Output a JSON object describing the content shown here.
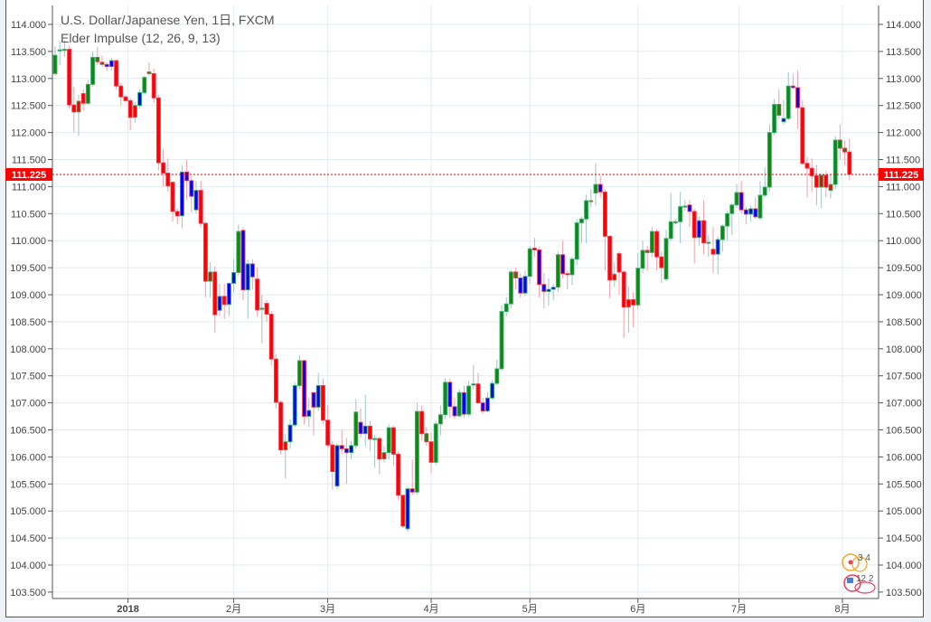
{
  "chart_data": {
    "type": "candlestick",
    "title": "U.S. Dollar/Japanese Yen, 1日, FXCM",
    "indicator": "Elder Impulse (12, 26, 9, 13)",
    "ylim": [
      103.3,
      114.3
    ],
    "y_ticks": [
      "103.500",
      "104.000",
      "104.500",
      "105.000",
      "105.500",
      "106.000",
      "106.500",
      "107.000",
      "107.500",
      "108.000",
      "108.500",
      "109.000",
      "109.500",
      "110.000",
      "110.500",
      "111.000",
      "111.500",
      "112.000",
      "112.500",
      "113.000",
      "113.500",
      "114.000"
    ],
    "x_ticks": [
      {
        "label": "2018",
        "index": 15.5,
        "bold": true
      },
      {
        "label": "2月",
        "index": 38
      },
      {
        "label": "3月",
        "index": 58
      },
      {
        "label": "4月",
        "index": 80
      },
      {
        "label": "5月",
        "index": 101
      },
      {
        "label": "6月",
        "index": 124
      },
      {
        "label": "7月",
        "index": 145.5
      },
      {
        "label": "8月",
        "index": 167.5
      }
    ],
    "current_price": 111.225,
    "current_price_label": "111.225",
    "grid": true,
    "colors": {
      "g": "#0a8a14",
      "r": "#ff0000",
      "b": "#0000ff",
      "up_border": "#3fae6e",
      "down_border": "#f03a4f",
      "up_wick": "#9cc6c8",
      "down_wick": "#f2a0aa",
      "price_line": "#e00000"
    },
    "candle_fields": [
      "open",
      "high",
      "low",
      "close",
      "impulse"
    ],
    "candles": [
      [
        113.09,
        113.59,
        113.05,
        113.43,
        "g"
      ],
      [
        113.53,
        113.69,
        113.25,
        113.53,
        "g"
      ],
      [
        113.54,
        113.7,
        113.4,
        113.54,
        "g"
      ],
      [
        113.54,
        113.6,
        112.45,
        112.51,
        "r"
      ],
      [
        112.51,
        112.85,
        112.0,
        112.38,
        "r"
      ],
      [
        112.38,
        112.7,
        111.94,
        112.58,
        "r"
      ],
      [
        112.72,
        112.8,
        112.4,
        112.54,
        "r"
      ],
      [
        112.54,
        112.97,
        112.52,
        112.89,
        "g"
      ],
      [
        112.89,
        113.5,
        112.85,
        113.39,
        "g"
      ],
      [
        113.39,
        113.58,
        113.25,
        113.31,
        "g"
      ],
      [
        113.3,
        113.42,
        113.22,
        113.26,
        "g"
      ],
      [
        113.26,
        113.3,
        113.15,
        113.22,
        "b"
      ],
      [
        113.22,
        113.38,
        113.15,
        113.33,
        "b"
      ],
      [
        113.33,
        113.35,
        112.8,
        112.86,
        "r"
      ],
      [
        112.86,
        112.92,
        112.5,
        112.66,
        "r"
      ],
      [
        112.66,
        112.7,
        112.55,
        112.59,
        "r"
      ],
      [
        112.59,
        112.64,
        112.05,
        112.28,
        "r"
      ],
      [
        112.28,
        112.56,
        112.18,
        112.5,
        "r"
      ],
      [
        112.5,
        112.8,
        112.45,
        112.74,
        "b"
      ],
      [
        112.74,
        113.05,
        112.7,
        113.02,
        "g"
      ],
      [
        113.12,
        113.3,
        113.05,
        113.09,
        "g"
      ],
      [
        113.09,
        113.18,
        112.55,
        112.64,
        "r"
      ],
      [
        112.64,
        112.7,
        111.3,
        111.44,
        "r"
      ],
      [
        111.44,
        111.7,
        111.0,
        111.25,
        "r"
      ],
      [
        111.25,
        111.52,
        110.9,
        111.01,
        "r"
      ],
      [
        111.08,
        111.1,
        110.35,
        110.54,
        "r"
      ],
      [
        110.54,
        110.6,
        110.3,
        110.46,
        "r"
      ],
      [
        110.46,
        111.4,
        110.23,
        111.27,
        "b"
      ],
      [
        111.27,
        111.5,
        110.75,
        111.11,
        "b"
      ],
      [
        111.11,
        111.2,
        110.52,
        110.82,
        "b"
      ],
      [
        110.57,
        111.1,
        110.5,
        110.93,
        "b"
      ],
      [
        110.93,
        111.1,
        110.25,
        110.32,
        "r"
      ],
      [
        110.32,
        110.35,
        108.95,
        109.25,
        "r"
      ],
      [
        109.25,
        109.6,
        108.95,
        109.42,
        "r"
      ],
      [
        109.42,
        109.52,
        108.3,
        108.63,
        "r"
      ],
      [
        108.71,
        109.2,
        108.6,
        108.97,
        "b"
      ],
      [
        108.97,
        109.2,
        108.55,
        108.82,
        "r"
      ],
      [
        108.82,
        109.23,
        108.6,
        109.21,
        "b"
      ],
      [
        109.21,
        109.65,
        109.05,
        109.41,
        "b"
      ],
      [
        109.41,
        110.29,
        109.35,
        110.17,
        "g"
      ],
      [
        110.19,
        110.25,
        108.9,
        109.09,
        "b"
      ],
      [
        109.09,
        109.65,
        108.55,
        109.57,
        "b"
      ],
      [
        109.57,
        109.65,
        109.1,
        109.33,
        "b"
      ],
      [
        109.29,
        109.5,
        108.6,
        108.72,
        "r"
      ],
      [
        108.75,
        109.0,
        108.1,
        108.75,
        "g"
      ],
      [
        108.84,
        108.9,
        108.5,
        108.64,
        "r"
      ],
      [
        108.64,
        108.7,
        107.7,
        107.81,
        "r"
      ],
      [
        107.81,
        107.9,
        106.9,
        107.01,
        "r"
      ],
      [
        107.01,
        107.05,
        106.05,
        106.13,
        "r"
      ],
      [
        106.13,
        106.42,
        105.6,
        106.28,
        "r"
      ],
      [
        106.28,
        106.7,
        106.15,
        106.59,
        "b"
      ],
      [
        106.59,
        107.38,
        106.55,
        107.32,
        "b"
      ],
      [
        107.32,
        107.88,
        107.25,
        107.78,
        "g"
      ],
      [
        107.78,
        107.8,
        106.6,
        106.75,
        "b"
      ],
      [
        106.75,
        107.1,
        106.55,
        106.86,
        "b"
      ],
      [
        107.19,
        107.2,
        106.4,
        106.92,
        "b"
      ],
      [
        106.92,
        107.55,
        106.85,
        107.32,
        "b"
      ],
      [
        107.32,
        107.45,
        106.6,
        106.68,
        "r"
      ],
      [
        106.68,
        106.95,
        106.18,
        106.22,
        "r"
      ],
      [
        106.22,
        106.3,
        105.4,
        105.73,
        "r"
      ],
      [
        105.46,
        106.25,
        105.4,
        106.21,
        "b"
      ],
      [
        106.21,
        106.5,
        106.05,
        106.15,
        "b"
      ],
      [
        106.15,
        106.35,
        105.5,
        106.08,
        "b"
      ],
      [
        106.08,
        106.3,
        105.95,
        106.21,
        "b"
      ],
      [
        106.21,
        107.07,
        106.15,
        106.83,
        "g"
      ],
      [
        106.64,
        106.9,
        106.35,
        106.43,
        "b"
      ],
      [
        106.43,
        107.15,
        106.2,
        106.57,
        "b"
      ],
      [
        106.57,
        106.66,
        106.1,
        106.33,
        "r"
      ],
      [
        106.34,
        106.4,
        105.8,
        106.34,
        "g"
      ],
      [
        106.34,
        106.38,
        105.68,
        105.96,
        "r"
      ],
      [
        105.96,
        106.2,
        105.9,
        106.08,
        "r"
      ],
      [
        106.08,
        106.6,
        105.95,
        106.54,
        "g"
      ],
      [
        106.54,
        106.58,
        105.85,
        106.05,
        "r"
      ],
      [
        106.05,
        106.1,
        105.2,
        105.29,
        "r"
      ],
      [
        105.29,
        105.3,
        104.68,
        104.72,
        "r"
      ],
      [
        104.67,
        105.45,
        104.62,
        105.41,
        "b"
      ],
      [
        105.41,
        105.95,
        105.3,
        105.35,
        "b"
      ],
      [
        105.35,
        107.0,
        105.3,
        106.84,
        "g"
      ],
      [
        106.84,
        106.95,
        106.3,
        106.43,
        "r"
      ],
      [
        106.43,
        106.55,
        106.2,
        106.28,
        "g"
      ],
      [
        106.28,
        106.45,
        105.7,
        105.9,
        "r"
      ],
      [
        105.9,
        106.66,
        105.85,
        106.61,
        "g"
      ],
      [
        106.61,
        106.95,
        106.4,
        106.78,
        "g"
      ],
      [
        106.78,
        107.45,
        106.7,
        107.38,
        "g"
      ],
      [
        107.38,
        107.45,
        106.72,
        106.93,
        "b"
      ],
      [
        106.93,
        107.1,
        106.7,
        106.76,
        "b"
      ],
      [
        106.76,
        107.25,
        106.72,
        107.19,
        "g"
      ],
      [
        107.19,
        107.32,
        106.72,
        106.79,
        "b"
      ],
      [
        106.79,
        107.4,
        106.75,
        107.31,
        "g"
      ],
      [
        107.33,
        107.7,
        107.25,
        107.35,
        "b"
      ],
      [
        107.35,
        107.55,
        106.98,
        107.0,
        "r"
      ],
      [
        107.0,
        107.1,
        106.8,
        106.85,
        "b"
      ],
      [
        106.85,
        107.2,
        106.82,
        107.09,
        "b"
      ],
      [
        107.09,
        107.42,
        107.05,
        107.36,
        "b"
      ],
      [
        107.36,
        107.8,
        107.33,
        107.63,
        "g"
      ],
      [
        107.63,
        108.8,
        107.6,
        108.69,
        "g"
      ],
      [
        108.69,
        108.95,
        108.6,
        108.83,
        "g"
      ],
      [
        108.83,
        109.45,
        108.75,
        109.42,
        "g"
      ],
      [
        109.42,
        109.5,
        109.1,
        109.31,
        "g"
      ],
      [
        109.31,
        109.4,
        108.95,
        109.03,
        "b"
      ],
      [
        109.03,
        109.45,
        108.98,
        109.34,
        "b"
      ],
      [
        109.34,
        109.9,
        109.2,
        109.85,
        "g"
      ],
      [
        109.86,
        110.05,
        109.7,
        109.83,
        "b"
      ],
      [
        109.83,
        109.88,
        108.95,
        109.19,
        "b"
      ],
      [
        109.19,
        109.4,
        108.75,
        109.06,
        "b"
      ],
      [
        109.06,
        109.3,
        108.8,
        109.1,
        "b"
      ],
      [
        109.1,
        109.2,
        108.9,
        109.14,
        "b"
      ],
      [
        109.14,
        109.8,
        109.05,
        109.74,
        "g"
      ],
      [
        109.74,
        110.0,
        109.3,
        109.39,
        "b"
      ],
      [
        109.39,
        109.45,
        109.1,
        109.37,
        "b"
      ],
      [
        109.37,
        109.7,
        109.18,
        109.66,
        "g"
      ],
      [
        109.66,
        110.4,
        109.55,
        110.33,
        "g"
      ],
      [
        110.33,
        110.45,
        109.95,
        110.4,
        "g"
      ],
      [
        110.4,
        110.85,
        109.95,
        110.74,
        "g"
      ],
      [
        110.74,
        110.95,
        110.62,
        110.74,
        "r"
      ],
      [
        110.88,
        111.43,
        110.65,
        111.04,
        "g"
      ],
      [
        111.04,
        111.2,
        110.8,
        110.9,
        "b"
      ],
      [
        110.9,
        110.95,
        109.45,
        110.08,
        "r"
      ],
      [
        110.08,
        110.1,
        108.95,
        109.27,
        "r"
      ],
      [
        109.27,
        109.6,
        109.15,
        109.38,
        "r"
      ],
      [
        109.76,
        109.8,
        109.0,
        109.42,
        "r"
      ],
      [
        109.42,
        109.45,
        108.2,
        108.77,
        "r"
      ],
      [
        108.77,
        109.15,
        108.3,
        108.91,
        "r"
      ],
      [
        108.91,
        109.05,
        108.4,
        108.81,
        "r"
      ],
      [
        108.81,
        109.77,
        108.75,
        109.49,
        "g"
      ],
      [
        109.49,
        110.0,
        109.4,
        109.82,
        "g"
      ],
      [
        109.82,
        109.9,
        109.45,
        109.78,
        "g"
      ],
      [
        109.78,
        110.25,
        109.7,
        110.17,
        "g"
      ],
      [
        110.17,
        110.22,
        109.45,
        109.7,
        "r"
      ],
      [
        109.7,
        109.8,
        109.22,
        109.5,
        "r"
      ],
      [
        109.29,
        110.2,
        109.25,
        110.04,
        "g"
      ],
      [
        110.04,
        110.88,
        110.0,
        110.35,
        "g"
      ],
      [
        110.35,
        110.4,
        110.3,
        110.35,
        "r"
      ],
      [
        110.35,
        110.9,
        109.95,
        110.63,
        "g"
      ],
      [
        110.63,
        110.75,
        110.55,
        110.64,
        "g"
      ],
      [
        110.66,
        110.75,
        110.25,
        110.54,
        "b"
      ],
      [
        110.54,
        110.6,
        109.58,
        110.06,
        "r"
      ],
      [
        110.06,
        110.45,
        109.9,
        110.37,
        "b"
      ],
      [
        110.37,
        110.75,
        109.75,
        109.96,
        "r"
      ],
      [
        109.96,
        110.1,
        109.7,
        109.97,
        "g"
      ],
      [
        109.84,
        110.25,
        109.4,
        109.75,
        "r"
      ],
      [
        109.75,
        110.08,
        109.38,
        110.02,
        "b"
      ],
      [
        110.02,
        110.3,
        109.8,
        110.27,
        "g"
      ],
      [
        110.27,
        110.55,
        110.0,
        110.5,
        "g"
      ],
      [
        110.5,
        110.7,
        110.1,
        110.66,
        "g"
      ],
      [
        110.66,
        111.05,
        110.6,
        110.89,
        "g"
      ],
      [
        110.89,
        111.1,
        110.5,
        110.57,
        "b"
      ],
      [
        110.57,
        110.62,
        110.3,
        110.49,
        "b"
      ],
      [
        110.49,
        110.65,
        110.35,
        110.59,
        "b"
      ],
      [
        110.59,
        110.8,
        110.4,
        110.44,
        "b"
      ],
      [
        110.42,
        111.1,
        110.38,
        110.84,
        "g"
      ],
      [
        110.84,
        111.35,
        110.8,
        110.99,
        "g"
      ],
      [
        110.99,
        112.15,
        110.9,
        112.0,
        "g"
      ],
      [
        112.0,
        112.62,
        111.95,
        112.52,
        "g"
      ],
      [
        112.52,
        112.8,
        112.25,
        112.32,
        "g"
      ],
      [
        112.2,
        112.6,
        112.15,
        112.26,
        "b"
      ],
      [
        112.26,
        113.12,
        112.22,
        112.86,
        "g"
      ],
      [
        112.86,
        113.08,
        112.8,
        112.83,
        "b"
      ],
      [
        112.83,
        113.15,
        112.07,
        112.46,
        "b"
      ],
      [
        112.46,
        112.6,
        111.4,
        111.43,
        "r"
      ],
      [
        111.43,
        111.55,
        110.8,
        111.34,
        "r"
      ],
      [
        111.34,
        111.52,
        110.9,
        111.2,
        "r"
      ],
      [
        111.2,
        111.4,
        110.65,
        110.99,
        "r"
      ],
      [
        110.99,
        111.25,
        110.6,
        111.21,
        "r"
      ],
      [
        111.21,
        111.28,
        110.8,
        110.99,
        "r"
      ],
      [
        110.93,
        111.22,
        110.78,
        111.04,
        "r"
      ],
      [
        111.04,
        111.93,
        110.95,
        111.86,
        "g"
      ],
      [
        111.86,
        112.15,
        111.5,
        111.71,
        "g"
      ],
      [
        111.71,
        111.85,
        111.4,
        111.64,
        "g"
      ],
      [
        111.64,
        111.88,
        111.12,
        111.23,
        "r"
      ]
    ]
  },
  "badges": {
    "top": "3 4",
    "bottom": "12 2"
  }
}
